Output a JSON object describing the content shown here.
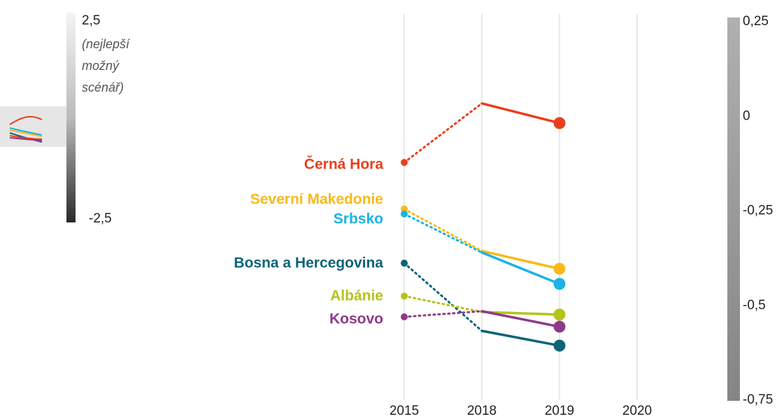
{
  "chart_data": {
    "type": "line",
    "categories": [
      "2015",
      "2018",
      "2019",
      "2020"
    ],
    "ylim": [
      -0.75,
      0.25
    ],
    "yticks": [
      {
        "value": 0.25,
        "label": "0,25"
      },
      0,
      {
        "value": -0.25,
        "label": "-0,25"
      },
      {
        "value": -0.5,
        "label": "-0,5"
      },
      {
        "value": -0.75,
        "label": "-0,75"
      }
    ],
    "grid": true,
    "series": [
      {
        "name": "Černá Hora",
        "color": "#e8401c",
        "values": [
          -0.122,
          0.034,
          -0.018,
          null
        ]
      },
      {
        "name": "Severní Makedonie",
        "color": "#f9b91a",
        "values": [
          -0.245,
          -0.356,
          -0.403,
          null
        ]
      },
      {
        "name": "Srbsko",
        "color": "#1ab3e6",
        "values": [
          -0.258,
          -0.36,
          -0.443,
          null
        ]
      },
      {
        "name": "Bosna a Hercegovina",
        "color": "#0d6478",
        "values": [
          -0.388,
          -0.567,
          -0.606,
          null
        ]
      },
      {
        "name": "Albánie",
        "color": "#b5c31a",
        "values": [
          -0.475,
          -0.517,
          -0.524,
          null
        ]
      },
      {
        "name": "Kosovo",
        "color": "#8e3a8a",
        "values": [
          -0.53,
          -0.515,
          -0.556,
          null
        ]
      }
    ],
    "color_scale": {
      "top": "2,5",
      "top_note": [
        "(nejlepší",
        "možný",
        "scénář)"
      ],
      "bottom": "-2,5"
    }
  }
}
